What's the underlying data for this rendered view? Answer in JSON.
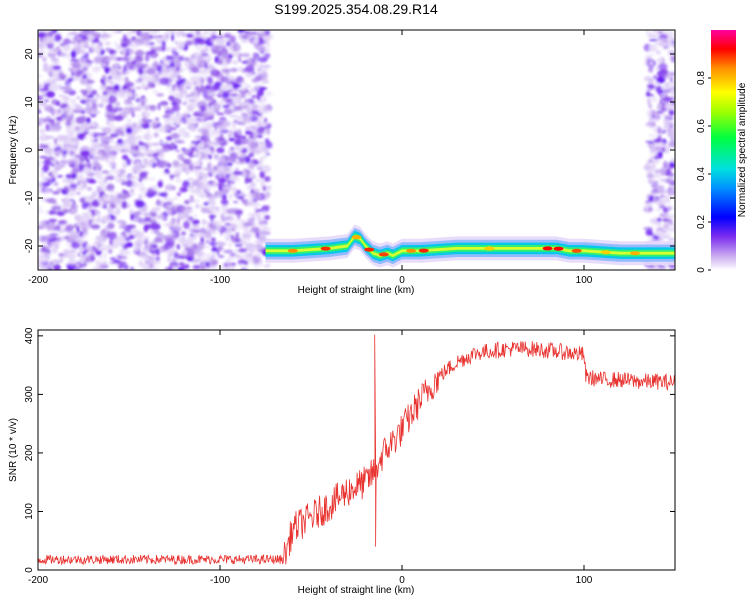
{
  "title": "S199.2025.354.08.29.R14",
  "chart_data": [
    {
      "type": "heatmap",
      "xlabel": "Height of straight line (km)",
      "ylabel": "Frequency (Hz)",
      "xlim": [
        -200,
        150
      ],
      "ylim": [
        -25,
        25
      ],
      "xticks": [
        -200,
        -100,
        0,
        100
      ],
      "yticks": [
        -20,
        -10,
        0,
        10,
        20
      ],
      "colorbar": {
        "label": "Normalized spectral amplitude",
        "range": [
          0,
          1
        ],
        "ticks": [
          0.0,
          0.2,
          0.4,
          0.6,
          0.8
        ]
      },
      "signal_track": {
        "x": [
          -75,
          -60,
          -40,
          -30,
          -26,
          -23,
          -20,
          -16,
          -12,
          -8,
          -5,
          0,
          10,
          30,
          60,
          85,
          92,
          100,
          120,
          135,
          150
        ],
        "freq": [
          -21,
          -21,
          -20.5,
          -20,
          -18,
          -18.5,
          -20,
          -21.5,
          -22,
          -21.5,
          -22,
          -21,
          -21,
          -20.5,
          -20.5,
          -20.5,
          -21,
          -21,
          -21.5,
          -21.5,
          -21.5
        ]
      },
      "noise_regions": [
        {
          "x": [
            -200,
            -73
          ],
          "freq": [
            -25,
            25
          ]
        },
        {
          "x": [
            135,
            150
          ],
          "freq": [
            -25,
            25
          ]
        }
      ]
    },
    {
      "type": "line",
      "xlabel": "Height of straight line (km)",
      "ylabel": "SNR (10 * v/v)",
      "xlim": [
        -200,
        150
      ],
      "ylim": [
        0,
        410
      ],
      "xticks": [
        -200,
        -100,
        0,
        100
      ],
      "yticks": [
        0,
        100,
        200,
        300,
        400
      ],
      "color": "#e8322f",
      "trend": {
        "x": [
          -200,
          -65,
          -60,
          -50,
          -40,
          -30,
          -20,
          -16,
          -10,
          0,
          10,
          20,
          30,
          40,
          50,
          60,
          70,
          80,
          90,
          100,
          101,
          110,
          120,
          130,
          140,
          150
        ],
        "y": [
          18,
          18,
          70,
          90,
          110,
          135,
          150,
          165,
          200,
          240,
          290,
          330,
          355,
          370,
          375,
          378,
          378,
          375,
          372,
          368,
          330,
          325,
          325,
          322,
          322,
          320
        ]
      },
      "spikes": [
        {
          "x": -15,
          "y": 402
        },
        {
          "x": -14.5,
          "y": 40
        }
      ]
    }
  ]
}
